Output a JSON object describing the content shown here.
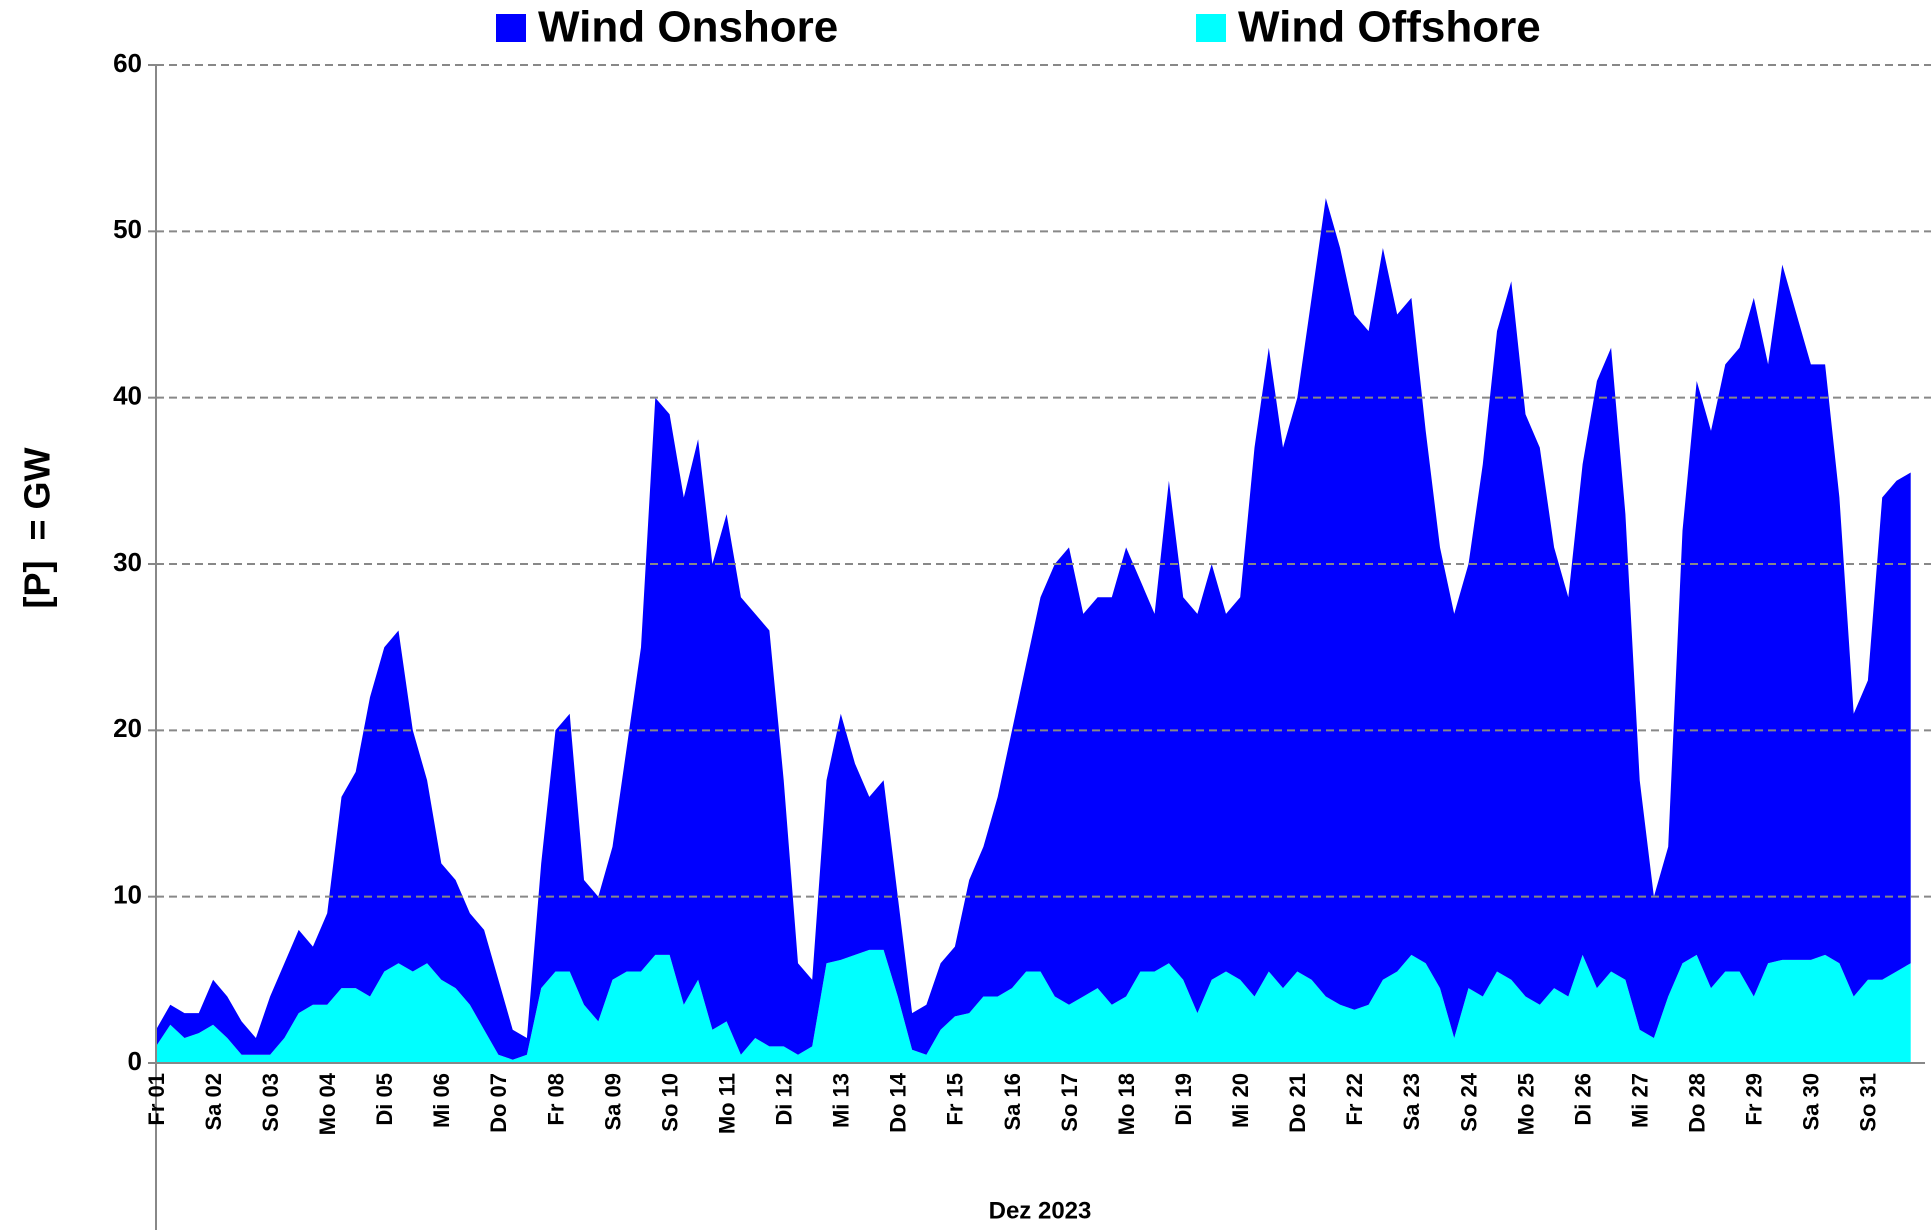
{
  "chart_data": {
    "type": "stacked-area",
    "y_label": "[P]  = GW",
    "x_label": "Dez 2023",
    "legend": "top",
    "grid": true,
    "ylim": [
      0,
      60
    ],
    "yticks": [
      0,
      10,
      20,
      30,
      40,
      50,
      60
    ],
    "categories": [
      "Fr 01",
      null,
      null,
      null,
      "Sa 02",
      null,
      null,
      null,
      "So 03",
      null,
      null,
      null,
      "Mo 04",
      null,
      null,
      null,
      "Di 05",
      null,
      null,
      null,
      "Mi 06",
      null,
      null,
      null,
      "Do 07",
      null,
      null,
      null,
      "Fr 08",
      null,
      null,
      null,
      "Sa 09",
      null,
      null,
      null,
      "So 10",
      null,
      null,
      null,
      "Mo 11",
      null,
      null,
      null,
      "Di 12",
      null,
      null,
      null,
      "Mi 13",
      null,
      null,
      null,
      "Do 14",
      null,
      null,
      null,
      "Fr 15",
      null,
      null,
      null,
      "Sa 16",
      null,
      null,
      null,
      "So 17",
      null,
      null,
      null,
      "Mo 18",
      null,
      null,
      null,
      "Di 19",
      null,
      null,
      null,
      "Mi 20",
      null,
      null,
      null,
      "Do 21",
      null,
      null,
      null,
      "Fr 22",
      null,
      null,
      null,
      "Sa 23",
      null,
      null,
      null,
      "So 24",
      null,
      null,
      null,
      "Mo 25",
      null,
      null,
      null,
      "Di 26",
      null,
      null,
      null,
      "Mi 27",
      null,
      null,
      null,
      "Do 28",
      null,
      null,
      null,
      "Fr 29",
      null,
      null,
      null,
      "Sa 30",
      null,
      null,
      null,
      "So 31",
      null,
      null,
      null
    ],
    "series": [
      {
        "name": "Wind Offshore",
        "color": "#00ffff",
        "values": [
          1,
          2.3,
          1.5,
          1.8,
          2.3,
          1.5,
          0.5,
          0.5,
          0.5,
          1.5,
          3,
          3.5,
          3.5,
          4.5,
          4.5,
          4,
          5.5,
          6,
          5.5,
          6,
          5,
          4.5,
          3.5,
          2,
          0.5,
          0.2,
          0.5,
          4.5,
          5.5,
          5.5,
          3.5,
          2.5,
          5,
          5.5,
          5.5,
          6.5,
          6.5,
          3.5,
          5,
          2,
          2.5,
          0.5,
          1.5,
          1,
          1,
          0.5,
          1,
          6,
          6.2,
          6.5,
          6.8,
          6.8,
          4,
          0.8,
          0.5,
          2,
          2.8,
          3,
          4,
          4,
          4.5,
          5.5,
          5.5,
          4,
          3.5,
          4,
          4.5,
          3.5,
          4,
          5.5,
          5.5,
          6,
          5,
          3,
          5,
          5.5,
          5,
          4,
          5.5,
          4.5,
          5.5,
          5,
          4,
          3.5,
          3.2,
          3.5,
          5,
          5.5,
          6.5,
          6,
          4.5,
          1.5,
          4.5,
          4,
          5.5,
          5,
          4,
          3.5,
          4.5,
          4,
          6.5,
          4.5,
          5.5,
          5,
          2,
          1.5,
          4,
          6,
          6.5,
          4.5,
          5.5,
          5.5,
          4,
          6,
          6.2,
          6.2,
          6.2,
          6.5,
          6,
          4,
          5,
          5,
          5.5,
          6
        ]
      },
      {
        "name": "Wind Onshore",
        "color": "#0000ff",
        "values": [
          1,
          1.2,
          1.5,
          1.2,
          2.7,
          2.5,
          2,
          1,
          3.5,
          4.5,
          5,
          3.5,
          5.5,
          11.5,
          13,
          18,
          19.5,
          20,
          14.5,
          11,
          7,
          6.5,
          5.5,
          6,
          4.5,
          1.8,
          1,
          7.5,
          14.5,
          15.5,
          7.5,
          7.5,
          8,
          13.5,
          19.5,
          33.5,
          32.5,
          30.5,
          32.5,
          28,
          30.5,
          27.5,
          25.5,
          25,
          16,
          5.5,
          4,
          11,
          14.8,
          11.5,
          9.2,
          10.2,
          6,
          2.2,
          3,
          4,
          4.2,
          8,
          9,
          12,
          15.5,
          18.5,
          22.5,
          26,
          27.5,
          23,
          23.5,
          24.5,
          27,
          23.5,
          21.5,
          29,
          23,
          24,
          25,
          21.5,
          23,
          33,
          37.5,
          32.5,
          34.5,
          41,
          48,
          45.5,
          41.8,
          40.5,
          44,
          39.5,
          39.5,
          32,
          26.5,
          25.5,
          25.5,
          32,
          38.5,
          42,
          35,
          33.5,
          26.5,
          24,
          29.5,
          36.5,
          37.5,
          28,
          15,
          8.5,
          9,
          26,
          34.5,
          33.5,
          36.5,
          37.5,
          42,
          36,
          41.8,
          38.8,
          35.8,
          35.5,
          28,
          17,
          18,
          29,
          29.5,
          29.5
        ]
      }
    ]
  }
}
